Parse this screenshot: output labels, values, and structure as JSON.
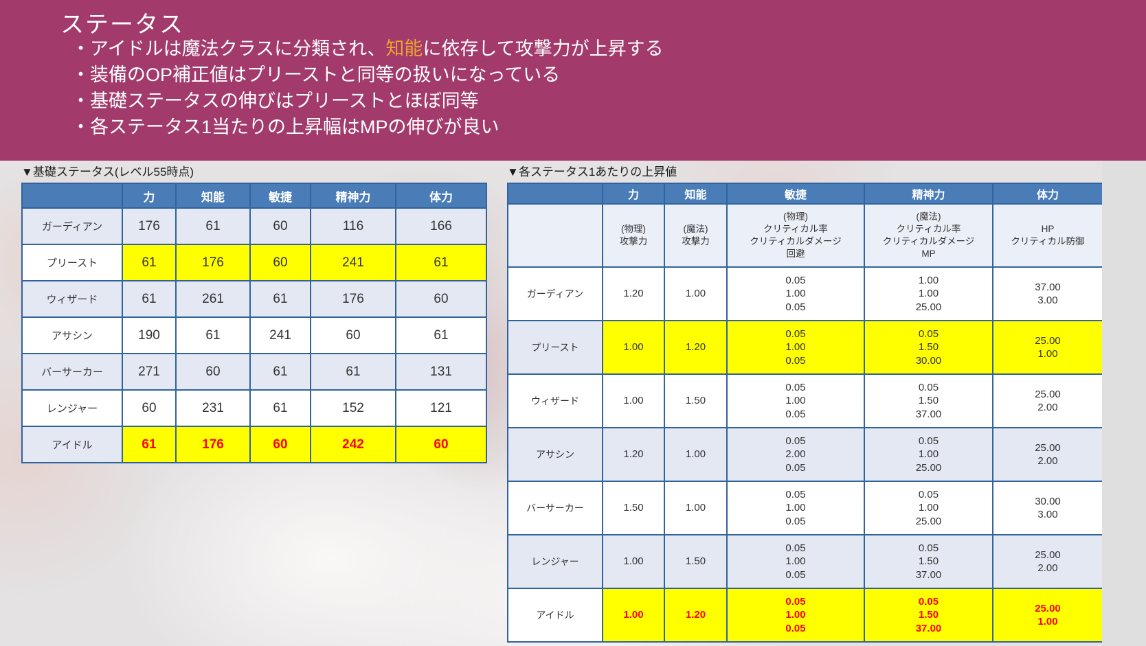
{
  "banner": {
    "title": "ステータス",
    "bullets": [
      {
        "prefix": "・アイドルは魔法クラスに分類され、",
        "highlight": "知能",
        "suffix": "に依存して攻撃力が上昇する"
      },
      {
        "prefix": "・装備のOP補正値はプリーストと同等の扱いになっている",
        "highlight": "",
        "suffix": ""
      },
      {
        "prefix": "・基礎ステータスの伸びはプリーストとほぼ同等",
        "highlight": "",
        "suffix": ""
      },
      {
        "prefix": "・各ステータス1当たりの上昇幅はMPの伸びが良い",
        "highlight": "",
        "suffix": ""
      }
    ]
  },
  "colors": {
    "banner_bg": "#A23A6B",
    "banner_text": "#FFFFFF",
    "highlight_text": "#ECA42F",
    "table_header_bg": "#4A7CB8",
    "table_border": "#31639C",
    "row_alt_bg": "#E4E8F3",
    "highlight_cell_bg": "#FFFF00",
    "emphasis_text": "#FF0000"
  },
  "base_stats_table": {
    "title": "▼基礎ステータス(レベル55時点)",
    "columns": [
      "力",
      "知能",
      "敏捷",
      "精神力",
      "体力"
    ],
    "rows": [
      {
        "name": "ガーディアン",
        "values": [
          "176",
          "61",
          "60",
          "116",
          "166"
        ],
        "shade": "alt",
        "highlighted": false,
        "emphasized": false
      },
      {
        "name": "プリースト",
        "values": [
          "61",
          "176",
          "60",
          "241",
          "61"
        ],
        "shade": "white",
        "highlighted": true,
        "emphasized": false
      },
      {
        "name": "ウィザード",
        "values": [
          "61",
          "261",
          "61",
          "176",
          "60"
        ],
        "shade": "alt",
        "highlighted": false,
        "emphasized": false
      },
      {
        "name": "アサシン",
        "values": [
          "190",
          "61",
          "241",
          "60",
          "61"
        ],
        "shade": "white",
        "highlighted": false,
        "emphasized": false
      },
      {
        "name": "バーサーカー",
        "values": [
          "271",
          "60",
          "61",
          "61",
          "131"
        ],
        "shade": "alt",
        "highlighted": false,
        "emphasized": false
      },
      {
        "name": "レンジャー",
        "values": [
          "60",
          "231",
          "61",
          "152",
          "121"
        ],
        "shade": "white",
        "highlighted": false,
        "emphasized": false
      },
      {
        "name": "アイドル",
        "values": [
          "61",
          "176",
          "60",
          "242",
          "60"
        ],
        "shade": "alt",
        "highlighted": true,
        "emphasized": true
      }
    ]
  },
  "per_stat_table": {
    "title": "▼各ステータス1あたりの上昇値",
    "columns": [
      "力",
      "知能",
      "敏捷",
      "精神力",
      "体力"
    ],
    "sub_headers": [
      "(物理)\n攻撃力",
      "(魔法)\n攻撃力",
      "(物理)\nクリティカル率\nクリティカルダメージ\n回避",
      "(魔法)\nクリティカル率\nクリティカルダメージ\nMP",
      "HP\nクリティカル防御"
    ],
    "rows": [
      {
        "name": "ガーディアン",
        "values": [
          "1.20",
          "1.00",
          "0.05\n1.00\n0.05",
          "1.00\n1.00\n25.00",
          "37.00\n3.00"
        ],
        "shade": "white",
        "highlighted": false,
        "emphasized": false
      },
      {
        "name": "プリースト",
        "values": [
          "1.00",
          "1.20",
          "0.05\n1.00\n0.05",
          "0.05\n1.50\n30.00",
          "25.00\n1.00"
        ],
        "shade": "alt",
        "highlighted": true,
        "emphasized": false
      },
      {
        "name": "ウィザード",
        "values": [
          "1.00",
          "1.50",
          "0.05\n1.00\n0.05",
          "0.05\n1.50\n37.00",
          "25.00\n2.00"
        ],
        "shade": "white",
        "highlighted": false,
        "emphasized": false
      },
      {
        "name": "アサシン",
        "values": [
          "1.20",
          "1.00",
          "0.05\n2.00\n0.05",
          "0.05\n1.00\n25.00",
          "25.00\n2.00"
        ],
        "shade": "alt",
        "highlighted": false,
        "emphasized": false
      },
      {
        "name": "バーサーカー",
        "values": [
          "1.50",
          "1.00",
          "0.05\n1.00\n0.05",
          "0.05\n1.00\n25.00",
          "30.00\n3.00"
        ],
        "shade": "white",
        "highlighted": false,
        "emphasized": false
      },
      {
        "name": "レンジャー",
        "values": [
          "1.00",
          "1.50",
          "0.05\n1.00\n0.05",
          "0.05\n1.50\n37.00",
          "25.00\n2.00"
        ],
        "shade": "alt",
        "highlighted": false,
        "emphasized": false
      },
      {
        "name": "アイドル",
        "values": [
          "1.00",
          "1.20",
          "0.05\n1.00\n0.05",
          "0.05\n1.50\n37.00",
          "25.00\n1.00"
        ],
        "shade": "white",
        "highlighted": true,
        "emphasized": true
      }
    ]
  }
}
